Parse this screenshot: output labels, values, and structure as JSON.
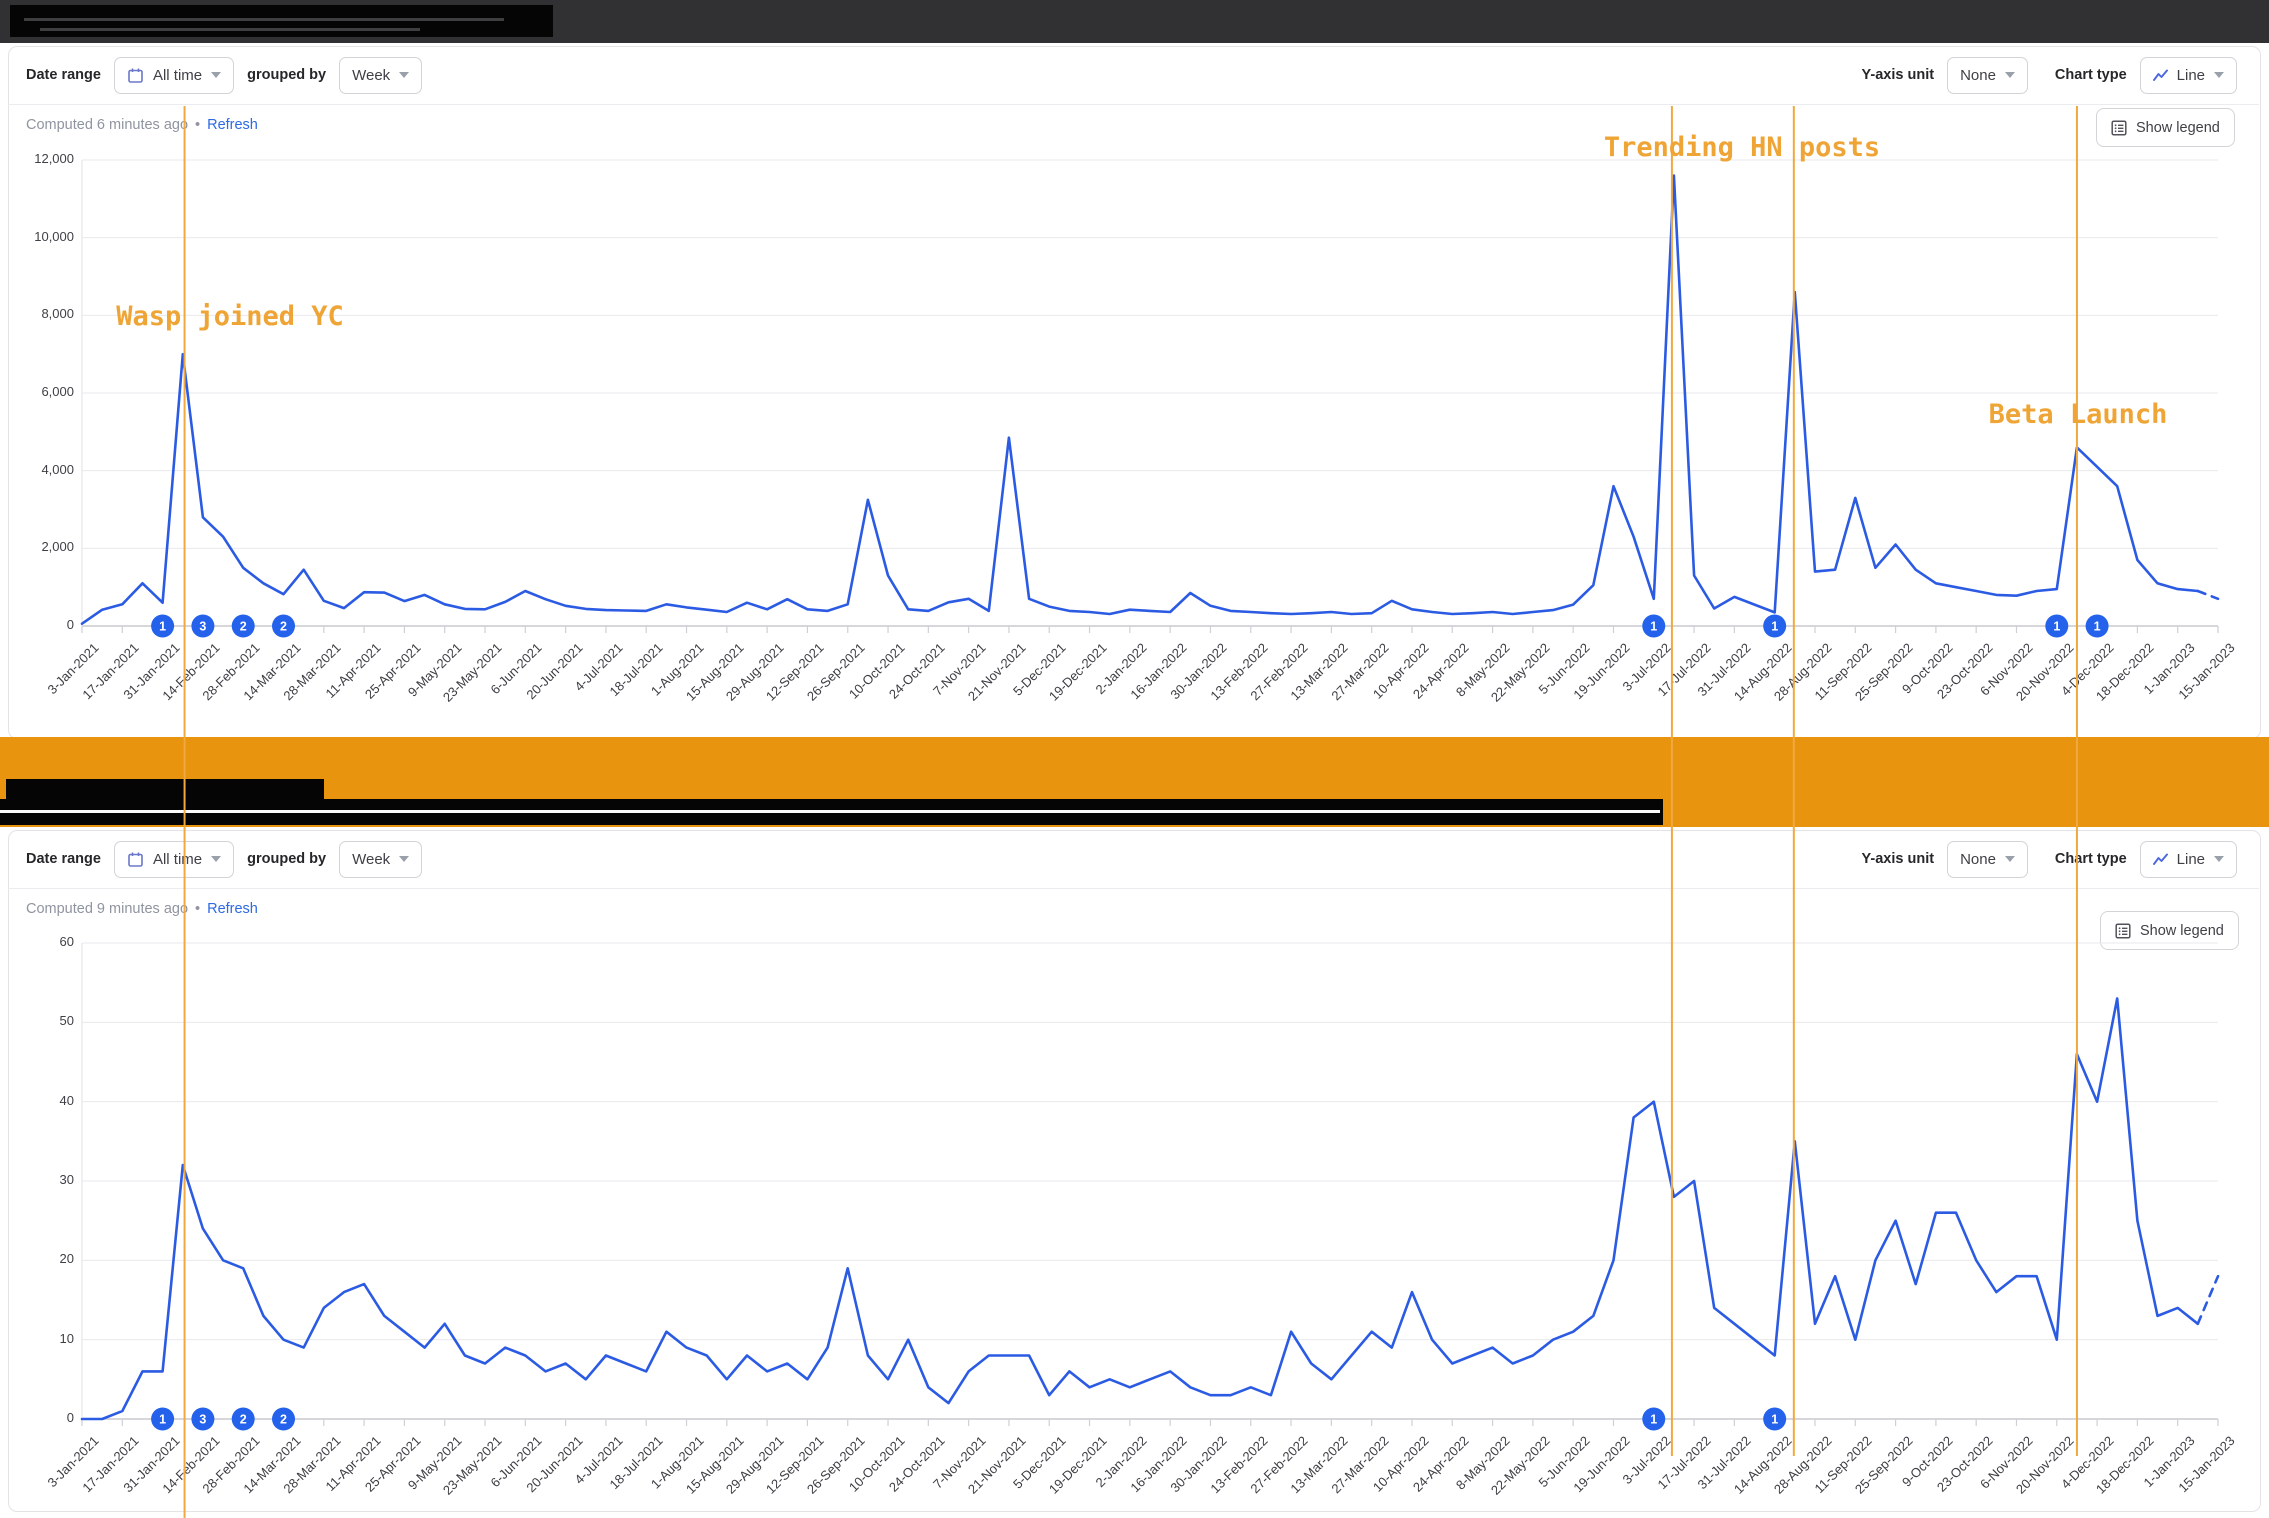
{
  "header": {
    "redacted": true
  },
  "annotations": {
    "line_color": "#f0a840",
    "text_color": "#efa436",
    "labels": [
      {
        "text": "Wasp joined YC",
        "date": "7-Feb-2021"
      },
      {
        "text": "Trending HN posts",
        "dates": [
          "10-Jul-2022",
          "21-Aug-2022"
        ]
      },
      {
        "text": "Beta Launch",
        "date": "27-Nov-2022"
      }
    ],
    "lines": [
      {
        "date": "7-Feb-2021",
        "week_index": 5.09,
        "full_height": true
      },
      {
        "date": "10-Jul-2022",
        "week_index": 78.9,
        "full_height": false
      },
      {
        "date": "21-Aug-2022",
        "week_index": 84.95,
        "full_height": false
      },
      {
        "date": "27-Nov-2022",
        "week_index": 99.0,
        "full_height": false
      }
    ]
  },
  "charts": [
    {
      "id": "top-chart",
      "title_redacted": true,
      "toolbar": {
        "date_range_label": "Date range",
        "date_range_value": "All time",
        "grouped_by_label": "grouped by",
        "grouped_by_value": "Week",
        "y_axis_unit_label": "Y-axis unit",
        "y_axis_unit_value": "None",
        "chart_type_label": "Chart type",
        "chart_type_value": "Line"
      },
      "computed_text": "Computed 6 minutes ago",
      "refresh_label": "Refresh",
      "show_legend_label": "Show legend",
      "chart_data": {
        "type": "line",
        "line_color": "#2c5be3",
        "marker_color": "#2462eb",
        "grid": "horizontal",
        "grouping": "Week",
        "ylim": [
          0,
          12000
        ],
        "y_ticks": [
          {
            "label": "12,000",
            "value": 12000
          },
          {
            "label": "10,000",
            "value": 10000
          },
          {
            "label": "8,000",
            "value": 8000
          },
          {
            "label": "6,000",
            "value": 6000
          },
          {
            "label": "4,000",
            "value": 4000
          },
          {
            "label": "2,000",
            "value": 2000
          },
          {
            "label": "0",
            "value": 0
          }
        ],
        "x_tick_labels": [
          "3-Jan-2021",
          "17-Jan-2021",
          "31-Jan-2021",
          "14-Feb-2021",
          "28-Feb-2021",
          "14-Mar-2021",
          "28-Mar-2021",
          "11-Apr-2021",
          "25-Apr-2021",
          "9-May-2021",
          "23-May-2021",
          "6-Jun-2021",
          "20-Jun-2021",
          "4-Jul-2021",
          "18-Jul-2021",
          "1-Aug-2021",
          "15-Aug-2021",
          "29-Aug-2021",
          "12-Sep-2021",
          "26-Sep-2021",
          "10-Oct-2021",
          "24-Oct-2021",
          "7-Nov-2021",
          "21-Nov-2021",
          "5-Dec-2021",
          "19-Dec-2021",
          "2-Jan-2022",
          "16-Jan-2022",
          "30-Jan-2022",
          "13-Feb-2022",
          "27-Feb-2022",
          "13-Mar-2022",
          "27-Mar-2022",
          "10-Apr-2022",
          "24-Apr-2022",
          "8-May-2022",
          "22-May-2022",
          "5-Jun-2022",
          "19-Jun-2022",
          "3-Jul-2022",
          "17-Jul-2022",
          "31-Jul-2022",
          "14-Aug-2022",
          "28-Aug-2022",
          "11-Sep-2022",
          "25-Sep-2022",
          "9-Oct-2022",
          "23-Oct-2022",
          "6-Nov-2022",
          "20-Nov-2022",
          "4-Dec-2022",
          "18-Dec-2022",
          "1-Jan-2023",
          "15-Jan-2023"
        ],
        "values": [
          60,
          420,
          560,
          1100,
          600,
          7000,
          2800,
          2300,
          1500,
          1100,
          820,
          1450,
          650,
          460,
          870,
          860,
          640,
          800,
          560,
          440,
          430,
          620,
          900,
          690,
          520,
          440,
          410,
          400,
          390,
          560,
          480,
          420,
          360,
          600,
          430,
          690,
          430,
          390,
          560,
          3250,
          1300,
          430,
          390,
          610,
          700,
          390,
          4850,
          700,
          500,
          390,
          360,
          310,
          420,
          390,
          360,
          850,
          520,
          390,
          360,
          330,
          310,
          330,
          360,
          310,
          330,
          650,
          430,
          360,
          310,
          330,
          360,
          310,
          360,
          410,
          550,
          1050,
          3600,
          2300,
          700,
          11600,
          1300,
          450,
          750,
          550,
          350,
          8600,
          1400,
          1450,
          3300,
          1500,
          2100,
          1450,
          1100,
          1000,
          900,
          800,
          780,
          900,
          950,
          4600,
          4100,
          3600,
          1700,
          1100,
          950,
          900,
          700
        ],
        "last_segment_dashed": true,
        "event_markers": [
          {
            "week_index": 4,
            "count": "1"
          },
          {
            "week_index": 6,
            "count": "3"
          },
          {
            "week_index": 8,
            "count": "2"
          },
          {
            "week_index": 10,
            "count": "2"
          },
          {
            "week_index": 78,
            "count": "1"
          },
          {
            "week_index": 84,
            "count": "1"
          },
          {
            "week_index": 98,
            "count": "1"
          },
          {
            "week_index": 100,
            "count": "1"
          }
        ]
      }
    },
    {
      "id": "bottom-chart",
      "title_redacted": true,
      "toolbar": {
        "date_range_label": "Date range",
        "date_range_value": "All time",
        "grouped_by_label": "grouped by",
        "grouped_by_value": "Week",
        "y_axis_unit_label": "Y-axis unit",
        "y_axis_unit_value": "None",
        "chart_type_label": "Chart type",
        "chart_type_value": "Line"
      },
      "computed_text": "Computed 9 minutes ago",
      "refresh_label": "Refresh",
      "show_legend_label": "Show legend",
      "chart_data": {
        "type": "line",
        "line_color": "#2c5be3",
        "marker_color": "#2462eb",
        "grid": "horizontal",
        "grouping": "Week",
        "ylim": [
          0,
          60
        ],
        "y_ticks": [
          {
            "label": "60",
            "value": 60
          },
          {
            "label": "50",
            "value": 50
          },
          {
            "label": "40",
            "value": 40
          },
          {
            "label": "30",
            "value": 30
          },
          {
            "label": "20",
            "value": 20
          },
          {
            "label": "10",
            "value": 10
          },
          {
            "label": "0",
            "value": 0
          }
        ],
        "x_tick_labels": [
          "3-Jan-2021",
          "17-Jan-2021",
          "31-Jan-2021",
          "14-Feb-2021",
          "28-Feb-2021",
          "14-Mar-2021",
          "28-Mar-2021",
          "11-Apr-2021",
          "25-Apr-2021",
          "9-May-2021",
          "23-May-2021",
          "6-Jun-2021",
          "20-Jun-2021",
          "4-Jul-2021",
          "18-Jul-2021",
          "1-Aug-2021",
          "15-Aug-2021",
          "29-Aug-2021",
          "12-Sep-2021",
          "26-Sep-2021",
          "10-Oct-2021",
          "24-Oct-2021",
          "7-Nov-2021",
          "21-Nov-2021",
          "5-Dec-2021",
          "19-Dec-2021",
          "2-Jan-2022",
          "16-Jan-2022",
          "30-Jan-2022",
          "13-Feb-2022",
          "27-Feb-2022",
          "13-Mar-2022",
          "27-Mar-2022",
          "10-Apr-2022",
          "24-Apr-2022",
          "8-May-2022",
          "22-May-2022",
          "5-Jun-2022",
          "19-Jun-2022",
          "3-Jul-2022",
          "17-Jul-2022",
          "31-Jul-2022",
          "14-Aug-2022",
          "28-Aug-2022",
          "11-Sep-2022",
          "25-Sep-2022",
          "9-Oct-2022",
          "23-Oct-2022",
          "6-Nov-2022",
          "20-Nov-2022",
          "4-Dec-2022",
          "18-Dec-2022",
          "1-Jan-2023",
          "15-Jan-2023"
        ],
        "values": [
          0,
          0,
          1,
          6,
          6,
          32,
          24,
          20,
          19,
          13,
          10,
          9,
          14,
          16,
          17,
          13,
          11,
          9,
          12,
          8,
          7,
          9,
          8,
          6,
          7,
          5,
          8,
          7,
          6,
          11,
          9,
          8,
          5,
          8,
          6,
          7,
          5,
          9,
          19,
          8,
          5,
          10,
          4,
          2,
          6,
          8,
          8,
          8,
          3,
          6,
          4,
          5,
          4,
          5,
          6,
          4,
          3,
          3,
          4,
          3,
          11,
          7,
          5,
          8,
          11,
          9,
          16,
          10,
          7,
          8,
          9,
          7,
          8,
          10,
          11,
          13,
          20,
          38,
          40,
          28,
          30,
          14,
          12,
          10,
          8,
          35,
          12,
          18,
          10,
          20,
          25,
          17,
          26,
          26,
          20,
          16,
          18,
          18,
          10,
          46,
          40,
          53,
          25,
          13,
          14,
          12,
          18
        ],
        "last_segment_dashed": true,
        "event_markers": [
          {
            "week_index": 4,
            "count": "1"
          },
          {
            "week_index": 6,
            "count": "3"
          },
          {
            "week_index": 8,
            "count": "2"
          },
          {
            "week_index": 10,
            "count": "2"
          },
          {
            "week_index": 78,
            "count": "1"
          },
          {
            "week_index": 84,
            "count": "1"
          }
        ]
      }
    }
  ]
}
